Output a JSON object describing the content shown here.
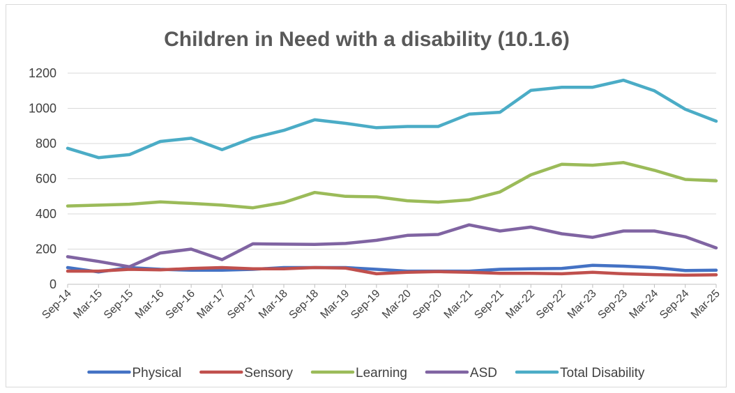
{
  "chart_data": {
    "type": "line",
    "title": "Children in Need with a disability (10.1.6)",
    "xlabel": "",
    "ylabel": "",
    "ylim": [
      0,
      1200
    ],
    "yticks": [
      "0",
      "200",
      "400",
      "600",
      "800",
      "1000",
      "1200"
    ],
    "grid": true,
    "legend_position": "bottom",
    "categories": [
      "Sep-14",
      "Mar-15",
      "Sep-15",
      "Mar-16",
      "Sep-16",
      "Mar-17",
      "Sep-17",
      "Mar-18",
      "Sep-18",
      "Mar-19",
      "Sep-19",
      "Mar-20",
      "Sep-20",
      "Mar-21",
      "Sep-21",
      "Mar-22",
      "Sep-22",
      "Mar-23",
      "Sep-23",
      "Mar-24",
      "Sep-24",
      "Mar-25"
    ],
    "series": [
      {
        "name": "Physical",
        "color": "#4472C4",
        "values": [
          95,
          70,
          95,
          85,
          80,
          80,
          85,
          95,
          95,
          95,
          85,
          75,
          75,
          75,
          85,
          88,
          90,
          108,
          103,
          95,
          78,
          80
        ]
      },
      {
        "name": "Sensory",
        "color": "#C0504D",
        "values": [
          75,
          75,
          85,
          82,
          90,
          95,
          88,
          88,
          95,
          92,
          60,
          68,
          72,
          68,
          62,
          62,
          60,
          68,
          60,
          55,
          52,
          54
        ]
      },
      {
        "name": "Learning",
        "color": "#9BBB59",
        "values": [
          445,
          450,
          455,
          468,
          460,
          450,
          435,
          465,
          522,
          500,
          497,
          475,
          467,
          480,
          525,
          622,
          682,
          677,
          692,
          648,
          596,
          588
        ]
      },
      {
        "name": "ASD",
        "color": "#8064A2",
        "values": [
          157,
          130,
          100,
          178,
          200,
          140,
          230,
          228,
          227,
          232,
          250,
          278,
          283,
          338,
          303,
          325,
          287,
          267,
          303,
          303,
          270,
          207
        ]
      },
      {
        "name": "Total Disability",
        "color": "#4BACC6",
        "values": [
          773,
          720,
          737,
          812,
          830,
          765,
          832,
          875,
          935,
          915,
          890,
          897,
          897,
          967,
          978,
          1102,
          1120,
          1120,
          1160,
          1100,
          995,
          927
        ]
      }
    ]
  }
}
